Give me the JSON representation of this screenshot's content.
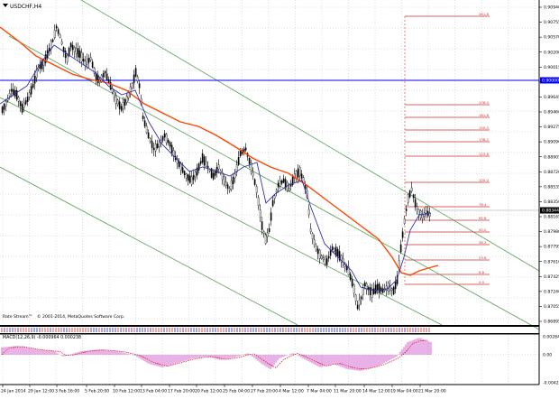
{
  "header": {
    "symbol": "USDCHF,H4",
    "symbol_icon": "down-triangle-icon"
  },
  "colors": {
    "background": "#ffffff",
    "grid": "#c0c0c0",
    "candle": "#000000",
    "ma_slow": "#ff4500",
    "ma_fast": "#3333aa",
    "channel": "#5aa05a",
    "fib": "#cc3333",
    "hline": "#0000ff",
    "bid_label": "#000000",
    "macd_hist": "#cc55cc",
    "macd_signal": "#dd2222"
  },
  "price_axis": {
    "ticks": [
      "0.90940",
      "0.90755",
      "0.90570",
      "0.90200",
      "0.90015",
      "0.89830",
      "0.89645",
      "0.89460",
      "0.89275",
      "0.89090",
      "0.88905",
      "0.88720",
      "0.88535",
      "0.88350",
      "0.88165",
      "0.87980",
      "0.87795",
      "0.87610",
      "0.87425",
      "0.87240",
      "0.87055",
      "0.86895"
    ],
    "hline_label": "0.90000",
    "bid_label": "0.88344"
  },
  "fib_levels": [
    {
      "label": "261.8"
    },
    {
      "label": "176.4"
    },
    {
      "label": "161.8"
    },
    {
      "label": "150.0"
    },
    {
      "label": "138.2"
    },
    {
      "label": "123.6"
    },
    {
      "label": "100.0"
    },
    {
      "label": "76.4"
    },
    {
      "label": "61.8"
    },
    {
      "label": "50.0"
    },
    {
      "label": "38.2"
    },
    {
      "label": "23.6"
    },
    {
      "label": "8.8"
    },
    {
      "label": "0.0"
    }
  ],
  "watermark": {
    "line1": "Rate Stream™",
    "line2": "© 2001-2014, MetaQuotes Software Corp."
  },
  "macd": {
    "label": "MACD(12,26,9) -0.000964 0.000238",
    "ticks": [
      "0.002841",
      "0.00",
      "-0.004232"
    ]
  },
  "time_axis": [
    "24 Jan 2014",
    "29 Jan 12:00",
    "3 Feb 16:00",
    "5 Feb 20:00",
    "10 Feb 12:00",
    "13 Feb 04:00",
    "17 Feb 20:00",
    "20 Feb 12:00",
    "25 Feb 04:00",
    "27 Feb 20:00",
    "4 Mar 12:00",
    "7 Mar 04:00",
    "11 Mar 20:00",
    "14 Mar 12:00",
    "19 Mar 04:00",
    "21 Mar 20:00"
  ]
}
